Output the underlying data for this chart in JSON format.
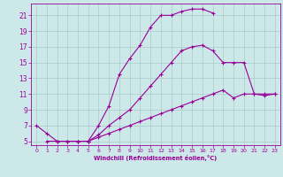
{
  "xlabel": "Windchill (Refroidissement éolien,°C)",
  "bg_color": "#cce8e8",
  "grid_color": "#aacccc",
  "line_color": "#990099",
  "xlim": [
    -0.5,
    23.5
  ],
  "ylim": [
    4.5,
    22.5
  ],
  "xticks": [
    0,
    1,
    2,
    3,
    4,
    5,
    6,
    7,
    8,
    9,
    10,
    11,
    12,
    13,
    14,
    15,
    16,
    17,
    18,
    19,
    20,
    21,
    22,
    23
  ],
  "yticks": [
    5,
    7,
    9,
    11,
    13,
    15,
    17,
    19,
    21
  ],
  "line1_x": [
    0,
    1,
    2,
    3,
    4,
    5,
    6,
    7,
    8,
    9,
    10,
    11,
    12,
    13,
    14,
    15,
    16,
    17
  ],
  "line1_y": [
    7,
    6,
    5,
    5,
    5,
    5,
    7,
    9.5,
    13.5,
    15.5,
    17.2,
    19.5,
    21,
    21,
    21.5,
    21.8,
    21.8,
    21.3
  ],
  "line2_x": [
    1,
    2,
    3,
    4,
    5,
    6,
    7,
    8,
    9,
    10,
    11,
    12,
    13,
    14,
    15,
    16,
    17,
    18,
    19,
    20,
    21,
    22,
    23
  ],
  "line2_y": [
    5,
    5,
    5,
    5,
    5,
    5.5,
    6,
    6.5,
    7,
    7.5,
    8,
    8.5,
    9,
    9.5,
    10,
    10.5,
    11,
    11.5,
    10.5,
    11,
    11,
    11,
    11
  ],
  "line3_x": [
    2,
    3,
    4,
    5,
    6,
    7,
    8,
    9,
    10,
    11,
    12,
    13,
    14,
    15,
    16,
    17,
    18,
    19,
    20,
    21,
    22,
    23
  ],
  "line3_y": [
    5,
    5,
    5,
    5,
    5.8,
    7,
    8,
    9,
    10.5,
    12,
    13.5,
    15,
    16.5,
    17,
    17.2,
    16.5,
    15,
    15,
    15,
    11,
    10.8,
    11
  ]
}
